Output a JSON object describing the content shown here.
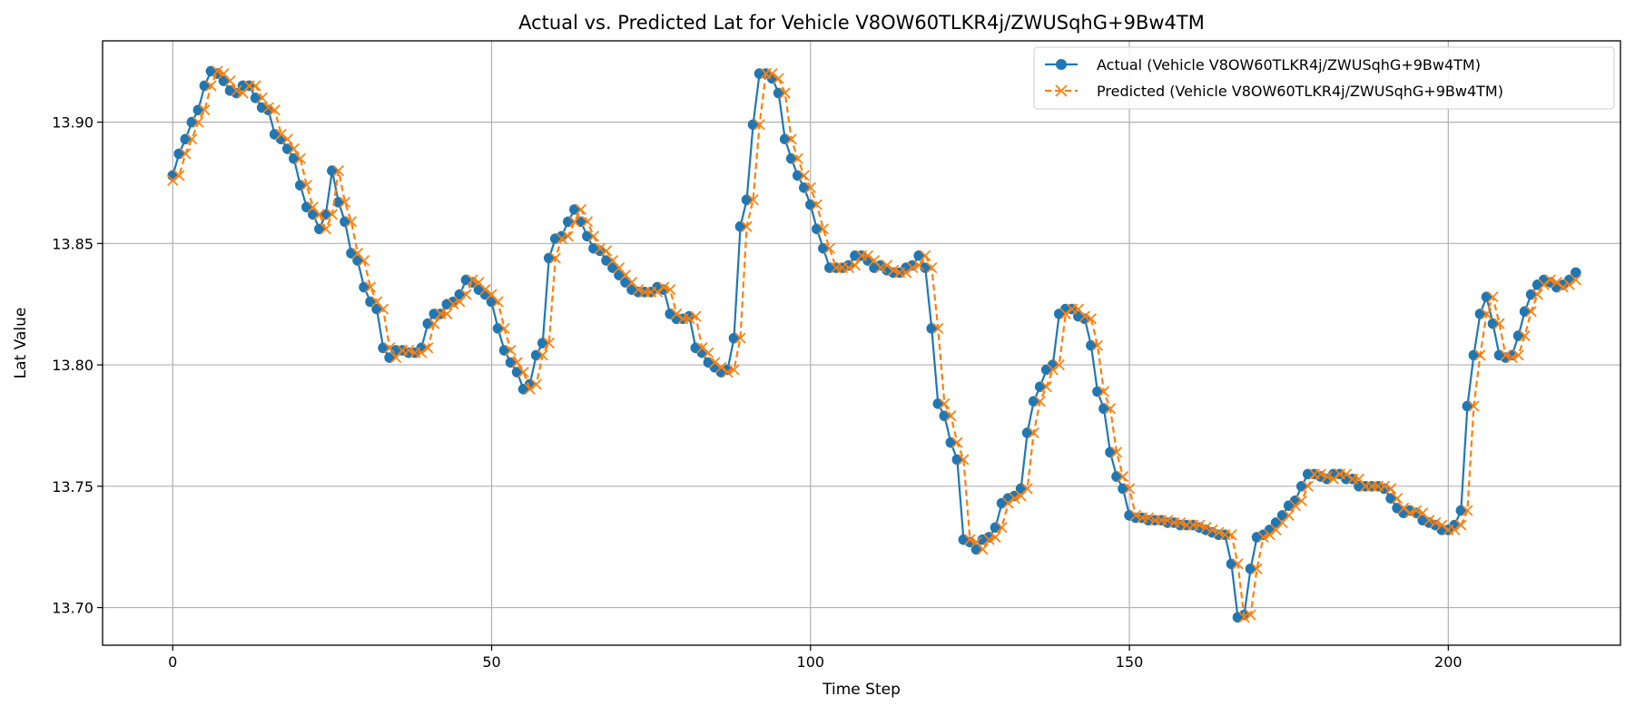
{
  "chart_data": {
    "type": "line",
    "title": "Actual vs. Predicted Lat for Vehicle V8OW60TLKR4j/ZWUSqhG+9Bw4TM",
    "xlabel": "Time Step",
    "ylabel": "Lat Value",
    "xlim": [
      -11,
      227
    ],
    "ylim": [
      13.6845,
      13.9335
    ],
    "xticks": [
      0,
      50,
      100,
      150,
      200
    ],
    "yticks": [
      13.7,
      13.75,
      13.8,
      13.85,
      13.9
    ],
    "xtick_labels": [
      "0",
      "50",
      "100",
      "150",
      "200"
    ],
    "ytick_labels": [
      "13.70",
      "13.75",
      "13.80",
      "13.85",
      "13.90"
    ],
    "grid": true,
    "legend_position": "top-right",
    "series": [
      {
        "name": "Actual (Vehicle V8OW60TLKR4j/ZWUSqhG+9Bw4TM)",
        "color": "#1f77b4",
        "line_style": "solid",
        "marker": "circle",
        "x_start": 0,
        "values": [
          13.878,
          13.887,
          13.893,
          13.9,
          13.905,
          13.915,
          13.921,
          13.92,
          13.917,
          13.913,
          13.912,
          13.915,
          13.915,
          13.91,
          13.906,
          13.905,
          13.895,
          13.893,
          13.889,
          13.885,
          13.874,
          13.865,
          13.862,
          13.856,
          13.862,
          13.88,
          13.867,
          13.859,
          13.846,
          13.843,
          13.832,
          13.826,
          13.823,
          13.807,
          13.803,
          13.806,
          13.806,
          13.805,
          13.805,
          13.807,
          13.817,
          13.821,
          13.821,
          13.825,
          13.826,
          13.829,
          13.835,
          13.834,
          13.831,
          13.829,
          13.826,
          13.815,
          13.806,
          13.801,
          13.797,
          13.79,
          13.792,
          13.804,
          13.809,
          13.844,
          13.852,
          13.853,
          13.859,
          13.864,
          13.859,
          13.853,
          13.848,
          13.847,
          13.843,
          13.84,
          13.837,
          13.834,
          13.831,
          13.83,
          13.83,
          13.83,
          13.832,
          13.831,
          13.821,
          13.819,
          13.819,
          13.82,
          13.807,
          13.805,
          13.801,
          13.799,
          13.797,
          13.798,
          13.811,
          13.857,
          13.868,
          13.899,
          13.92,
          13.92,
          13.918,
          13.912,
          13.893,
          13.885,
          13.878,
          13.873,
          13.866,
          13.856,
          13.848,
          13.84,
          13.84,
          13.84,
          13.841,
          13.845,
          13.845,
          13.843,
          13.84,
          13.841,
          13.839,
          13.838,
          13.838,
          13.84,
          13.841,
          13.845,
          13.84,
          13.815,
          13.784,
          13.779,
          13.768,
          13.761,
          13.728,
          13.727,
          13.724,
          13.728,
          13.729,
          13.733,
          13.743,
          13.745,
          13.746,
          13.749,
          13.772,
          13.785,
          13.791,
          13.798,
          13.8,
          13.821,
          13.823,
          13.823,
          13.82,
          13.819,
          13.808,
          13.789,
          13.782,
          13.764,
          13.754,
          13.749,
          13.738,
          13.737,
          13.737,
          13.736,
          13.736,
          13.736,
          13.735,
          13.735,
          13.734,
          13.734,
          13.734,
          13.733,
          13.732,
          13.731,
          13.73,
          13.73,
          13.718,
          13.696,
          13.697,
          13.716,
          13.729,
          13.73,
          13.732,
          13.735,
          13.738,
          13.742,
          13.744,
          13.75,
          13.755,
          13.755,
          13.754,
          13.753,
          13.755,
          13.755,
          13.753,
          13.753,
          13.75,
          13.75,
          13.75,
          13.75,
          13.749,
          13.745,
          13.741,
          13.739,
          13.74,
          13.739,
          13.736,
          13.735,
          13.734,
          13.732,
          13.732,
          13.734,
          13.74,
          13.783,
          13.804,
          13.821,
          13.828,
          13.817,
          13.804,
          13.803,
          13.804,
          13.812,
          13.822,
          13.829,
          13.833,
          13.835,
          13.834,
          13.832,
          13.833,
          13.835,
          13.838
        ]
      },
      {
        "name": "Predicted (Vehicle V8OW60TLKR4j/ZWUSqhG+9Bw4TM)",
        "color": "#ff7f0e",
        "line_style": "dashed",
        "marker": "x",
        "x_start": 0,
        "values": [
          13.876,
          13.878,
          13.887,
          13.893,
          13.9,
          13.905,
          13.915,
          13.921,
          13.92,
          13.917,
          13.913,
          13.912,
          13.915,
          13.915,
          13.91,
          13.906,
          13.905,
          13.895,
          13.893,
          13.889,
          13.885,
          13.874,
          13.865,
          13.862,
          13.856,
          13.862,
          13.88,
          13.867,
          13.859,
          13.846,
          13.843,
          13.832,
          13.826,
          13.823,
          13.807,
          13.803,
          13.806,
          13.806,
          13.805,
          13.805,
          13.807,
          13.817,
          13.821,
          13.821,
          13.825,
          13.826,
          13.829,
          13.835,
          13.834,
          13.831,
          13.829,
          13.826,
          13.815,
          13.806,
          13.801,
          13.797,
          13.79,
          13.792,
          13.804,
          13.809,
          13.844,
          13.852,
          13.853,
          13.859,
          13.864,
          13.859,
          13.853,
          13.848,
          13.847,
          13.843,
          13.84,
          13.837,
          13.834,
          13.831,
          13.83,
          13.83,
          13.83,
          13.832,
          13.831,
          13.821,
          13.819,
          13.819,
          13.82,
          13.807,
          13.805,
          13.801,
          13.799,
          13.797,
          13.798,
          13.811,
          13.857,
          13.868,
          13.899,
          13.92,
          13.92,
          13.918,
          13.912,
          13.893,
          13.885,
          13.878,
          13.873,
          13.866,
          13.856,
          13.848,
          13.84,
          13.84,
          13.84,
          13.841,
          13.845,
          13.845,
          13.843,
          13.84,
          13.841,
          13.839,
          13.838,
          13.838,
          13.84,
          13.841,
          13.845,
          13.84,
          13.815,
          13.784,
          13.779,
          13.768,
          13.761,
          13.728,
          13.727,
          13.724,
          13.728,
          13.729,
          13.733,
          13.743,
          13.745,
          13.746,
          13.749,
          13.772,
          13.785,
          13.791,
          13.798,
          13.8,
          13.821,
          13.823,
          13.823,
          13.82,
          13.819,
          13.808,
          13.789,
          13.782,
          13.764,
          13.754,
          13.749,
          13.738,
          13.737,
          13.737,
          13.736,
          13.736,
          13.736,
          13.735,
          13.735,
          13.734,
          13.734,
          13.734,
          13.733,
          13.732,
          13.731,
          13.73,
          13.73,
          13.718,
          13.696,
          13.697,
          13.716,
          13.729,
          13.73,
          13.732,
          13.735,
          13.738,
          13.742,
          13.744,
          13.75,
          13.755,
          13.755,
          13.754,
          13.753,
          13.755,
          13.755,
          13.753,
          13.753,
          13.75,
          13.75,
          13.75,
          13.75,
          13.749,
          13.745,
          13.741,
          13.739,
          13.74,
          13.739,
          13.736,
          13.735,
          13.734,
          13.732,
          13.732,
          13.734,
          13.74,
          13.783,
          13.804,
          13.821,
          13.828,
          13.817,
          13.804,
          13.803,
          13.804,
          13.812,
          13.822,
          13.829,
          13.833,
          13.835,
          13.834,
          13.832,
          13.833,
          13.835
        ]
      }
    ]
  }
}
